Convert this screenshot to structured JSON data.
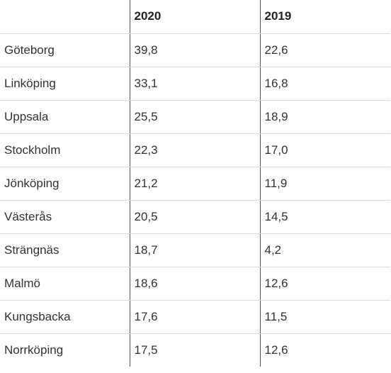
{
  "chart_data": {
    "type": "table",
    "columns": [
      "",
      "2020",
      "2019"
    ],
    "rows": [
      {
        "city": "Göteborg",
        "v2020": "39,8",
        "v2019": "22,6"
      },
      {
        "city": "Linköping",
        "v2020": "33,1",
        "v2019": "16,8"
      },
      {
        "city": "Uppsala",
        "v2020": "25,5",
        "v2019": "18,9"
      },
      {
        "city": "Stockholm",
        "v2020": "22,3",
        "v2019": "17,0"
      },
      {
        "city": "Jönköping",
        "v2020": "21,2",
        "v2019": "11,9"
      },
      {
        "city": "Västerås",
        "v2020": "20,5",
        "v2019": "14,5"
      },
      {
        "city": "Strängnäs",
        "v2020": "18,7",
        "v2019": "4,2"
      },
      {
        "city": "Malmö",
        "v2020": "18,6",
        "v2019": "12,6"
      },
      {
        "city": "Kungsbacka",
        "v2020": "17,6",
        "v2019": "11,5"
      },
      {
        "city": "Norrköping",
        "v2020": "17,5",
        "v2019": "12,6"
      }
    ]
  }
}
